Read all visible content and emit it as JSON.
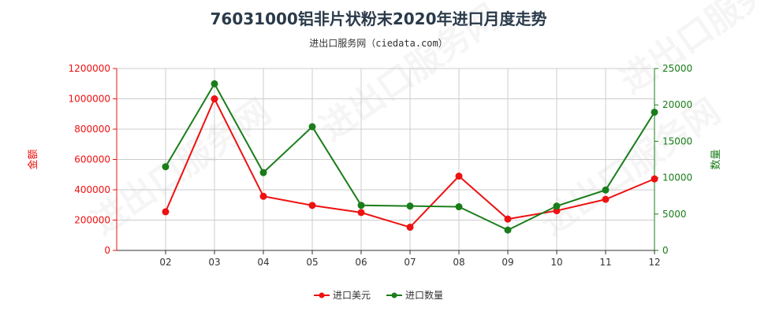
{
  "title": "76031000铝非片状粉末2020年进口月度走势",
  "subtitle": "进出口服务网（ciedata.com）",
  "watermark": "进出口服务网",
  "colors": {
    "amount": "#ee1111",
    "quantity": "#1a7d1a",
    "grid": "#cccccc",
    "axis_left": "#ee1111",
    "axis_right": "#1a7d1a"
  },
  "chart_data": {
    "type": "line",
    "categories": [
      "02",
      "03",
      "04",
      "05",
      "06",
      "07",
      "08",
      "09",
      "10",
      "11",
      "12"
    ],
    "y_left": {
      "label": "金额",
      "lim": [
        0,
        1200000
      ],
      "ticks": [
        0,
        200000,
        400000,
        600000,
        800000,
        1000000,
        1200000
      ],
      "tick_labels": [
        "0",
        "200000",
        "400000",
        "600000",
        "800000",
        "1000000",
        "1200000"
      ]
    },
    "y_right": {
      "label": "数量",
      "lim": [
        0,
        25000
      ],
      "ticks": [
        0,
        5000,
        10000,
        15000,
        20000,
        25000
      ],
      "tick_labels": [
        "0",
        "5000",
        "10000",
        "15000",
        "20000",
        "25000"
      ]
    },
    "series": [
      {
        "name": "进口美元",
        "axis": "left",
        "values": [
          255000,
          1000000,
          357000,
          297000,
          250000,
          153000,
          490000,
          207000,
          262000,
          337000,
          472000
        ]
      },
      {
        "name": "进口数量",
        "axis": "right",
        "values": [
          11500,
          22900,
          10700,
          17000,
          6200,
          6100,
          6000,
          2800,
          6100,
          8300,
          19000
        ]
      }
    ],
    "grid": true,
    "legend": "bottom-center"
  }
}
